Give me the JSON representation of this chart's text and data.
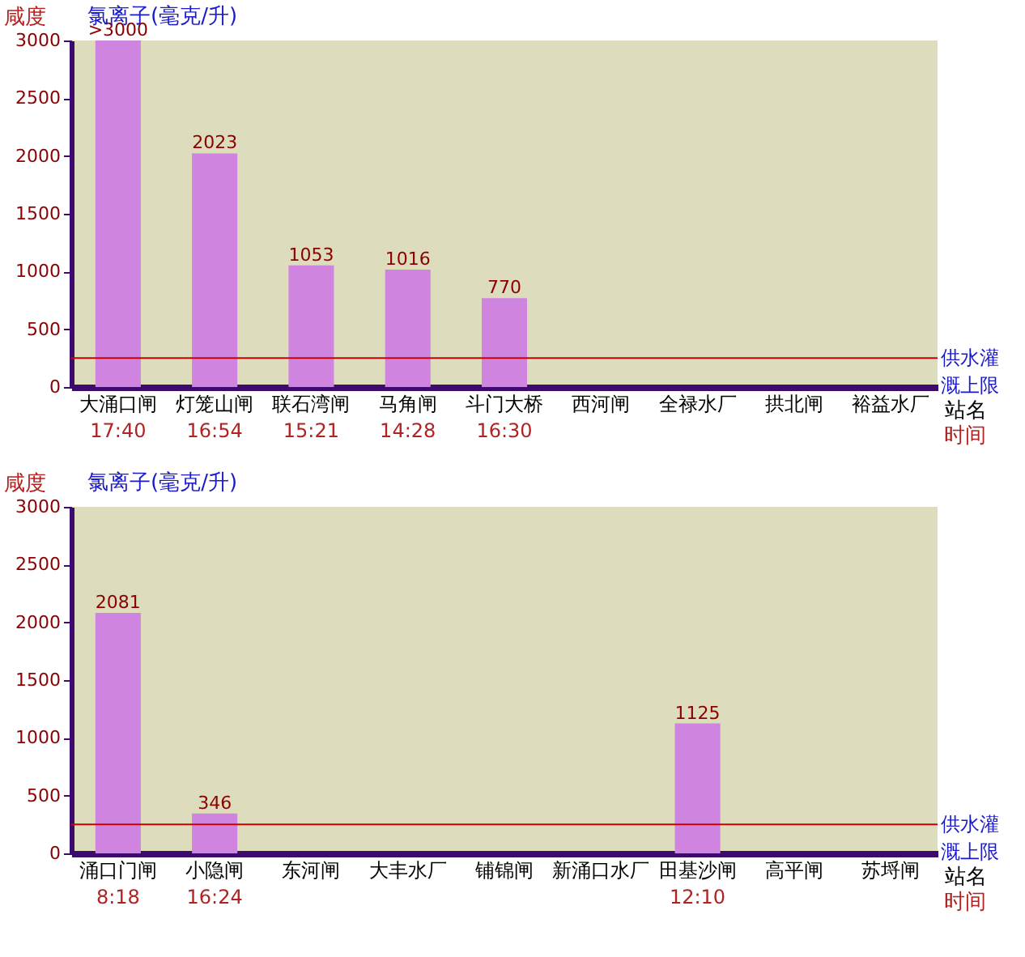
{
  "chart_data": [
    {
      "type": "bar",
      "categories": [
        "大涌口闸",
        "灯笼山闸",
        "联石湾闸",
        "马角闸",
        "斗门大桥",
        "西河闸",
        "全禄水厂",
        "拱北闸",
        "裕益水厂"
      ],
      "values": [
        3000,
        2023,
        1053,
        1016,
        770,
        null,
        null,
        null,
        null
      ],
      "value_labels": [
        ">3000",
        "2023",
        "1053",
        "1016",
        "770",
        null,
        null,
        null,
        null
      ],
      "color": "#cf85e0",
      "ylim": [
        0,
        3000
      ],
      "yticks": [
        0,
        500,
        1000,
        1500,
        2000,
        2500,
        3000
      ],
      "ylabel": "咸度",
      "xlabel": "站名",
      "ref_lines": [
        {
          "axis": "y",
          "value": 250,
          "label": "供水灌溉上限",
          "color": "#cc0000"
        }
      ],
      "annotations": [
        "氯离子(毫克/升)",
        "时间",
        "17:40",
        "16:54",
        "15:21",
        "14:28",
        "16:30"
      ]
    },
    {
      "type": "bar",
      "categories": [
        "涌口门闸",
        "小隐闸",
        "东河闸",
        "大丰水厂",
        "铺锦闸",
        "新涌口水厂",
        "田基沙闸",
        "高平闸",
        "苏埒闸"
      ],
      "values": [
        2081,
        346,
        null,
        null,
        null,
        null,
        1125,
        null,
        null
      ],
      "data_labels": true,
      "color": "#cf85e0",
      "ylim": [
        0,
        3000
      ],
      "yticks": [
        0,
        500,
        1000,
        1500,
        2000,
        2500,
        3000
      ],
      "ylabel": "咸度",
      "xlabel": "站名",
      "ref_lines": [
        {
          "axis": "y",
          "value": 250,
          "label": "供水灌溉上限",
          "color": "#cc0000"
        }
      ],
      "annotations": [
        "氯离子(毫克/升)",
        "时间",
        "8:18",
        "16:24",
        "12:10"
      ]
    }
  ]
}
